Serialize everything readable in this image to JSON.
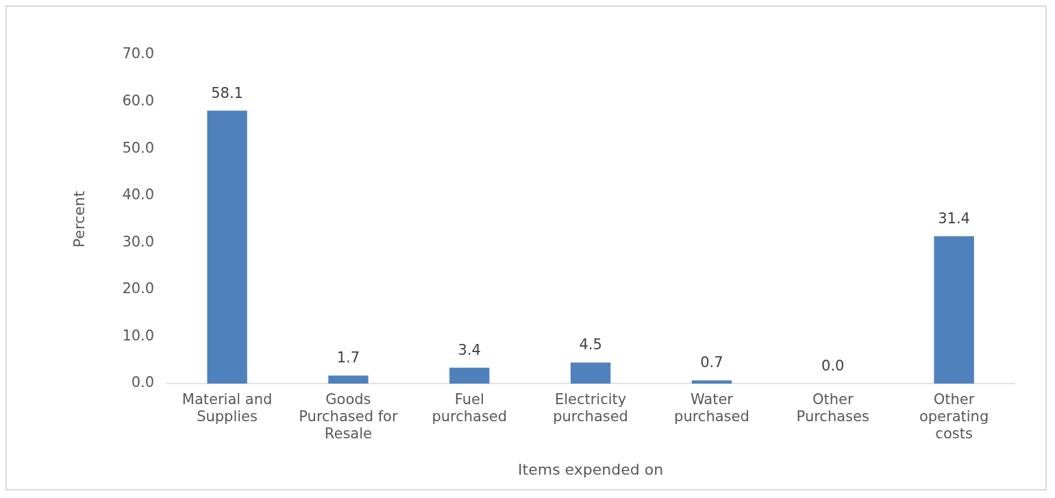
{
  "chart_data": {
    "type": "bar",
    "xlabel": "Items expended on",
    "ylabel": "Percent",
    "categories": [
      "Material and Supplies",
      "Goods Purchased for Resale",
      "Fuel purchased",
      "Electricity purchased",
      "Water purchased",
      "Other Purchases",
      "Other operating costs"
    ],
    "values": [
      58.1,
      1.7,
      3.4,
      4.5,
      0.7,
      0.0,
      31.4
    ],
    "value_labels": [
      "58.1",
      "1.7",
      "3.4",
      "4.5",
      "0.7",
      "0.0",
      "31.4"
    ],
    "color": "#4f81bd",
    "ylim": [
      0,
      70
    ],
    "yticks": [
      {
        "value": 0,
        "label": "0.0"
      },
      {
        "value": 10,
        "label": "10.0"
      },
      {
        "value": 20,
        "label": "20.0"
      },
      {
        "value": 30,
        "label": "30.0"
      },
      {
        "value": 40,
        "label": "40.0"
      },
      {
        "value": 50,
        "label": "50.0"
      },
      {
        "value": 60,
        "label": "60.0"
      },
      {
        "value": 70,
        "label": "70.0"
      }
    ],
    "grid": false,
    "legend": false
  }
}
